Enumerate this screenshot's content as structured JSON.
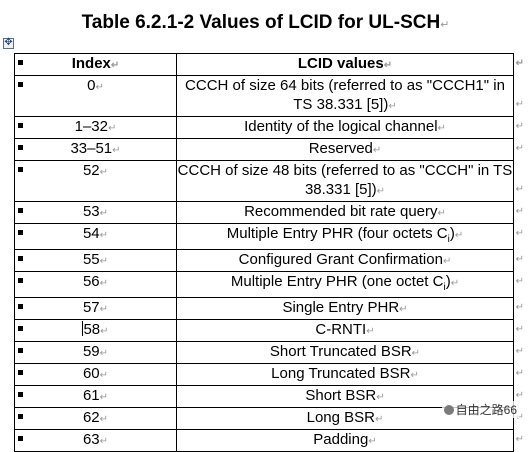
{
  "title": "Table 6.2.1-2 Values of LCID for UL-SCH",
  "mark": "↵",
  "table": {
    "headers": [
      "Index",
      "LCID values"
    ],
    "rows": [
      {
        "index": "0",
        "value": "CCCH of size 64 bits (referred to as \"CCCH1\" in TS 38.331 [5])"
      },
      {
        "index": "1–32",
        "value": "Identity of the logical channel"
      },
      {
        "index": "33–51",
        "value": "Reserved"
      },
      {
        "index": "52",
        "value": "CCCH of size 48 bits (referred to as \"CCCH\" in TS 38.331 [5])"
      },
      {
        "index": "53",
        "value": "Recommended bit rate query"
      },
      {
        "index": "54",
        "value": "Multiple Entry PHR (four octets Ci)"
      },
      {
        "index": "55",
        "value": "Configured Grant Confirmation"
      },
      {
        "index": "56",
        "value": "Multiple Entry PHR (one octet Ci)"
      },
      {
        "index": "57",
        "value": "Single Entry PHR"
      },
      {
        "index": "58",
        "value": "C-RNTI"
      },
      {
        "index": "59",
        "value": "Short Truncated BSR"
      },
      {
        "index": "60",
        "value": "Long Truncated BSR"
      },
      {
        "index": "61",
        "value": "Short BSR"
      },
      {
        "index": "62",
        "value": "Long BSR"
      },
      {
        "index": "63",
        "value": "Padding"
      }
    ]
  },
  "watermark": "自由之路66"
}
